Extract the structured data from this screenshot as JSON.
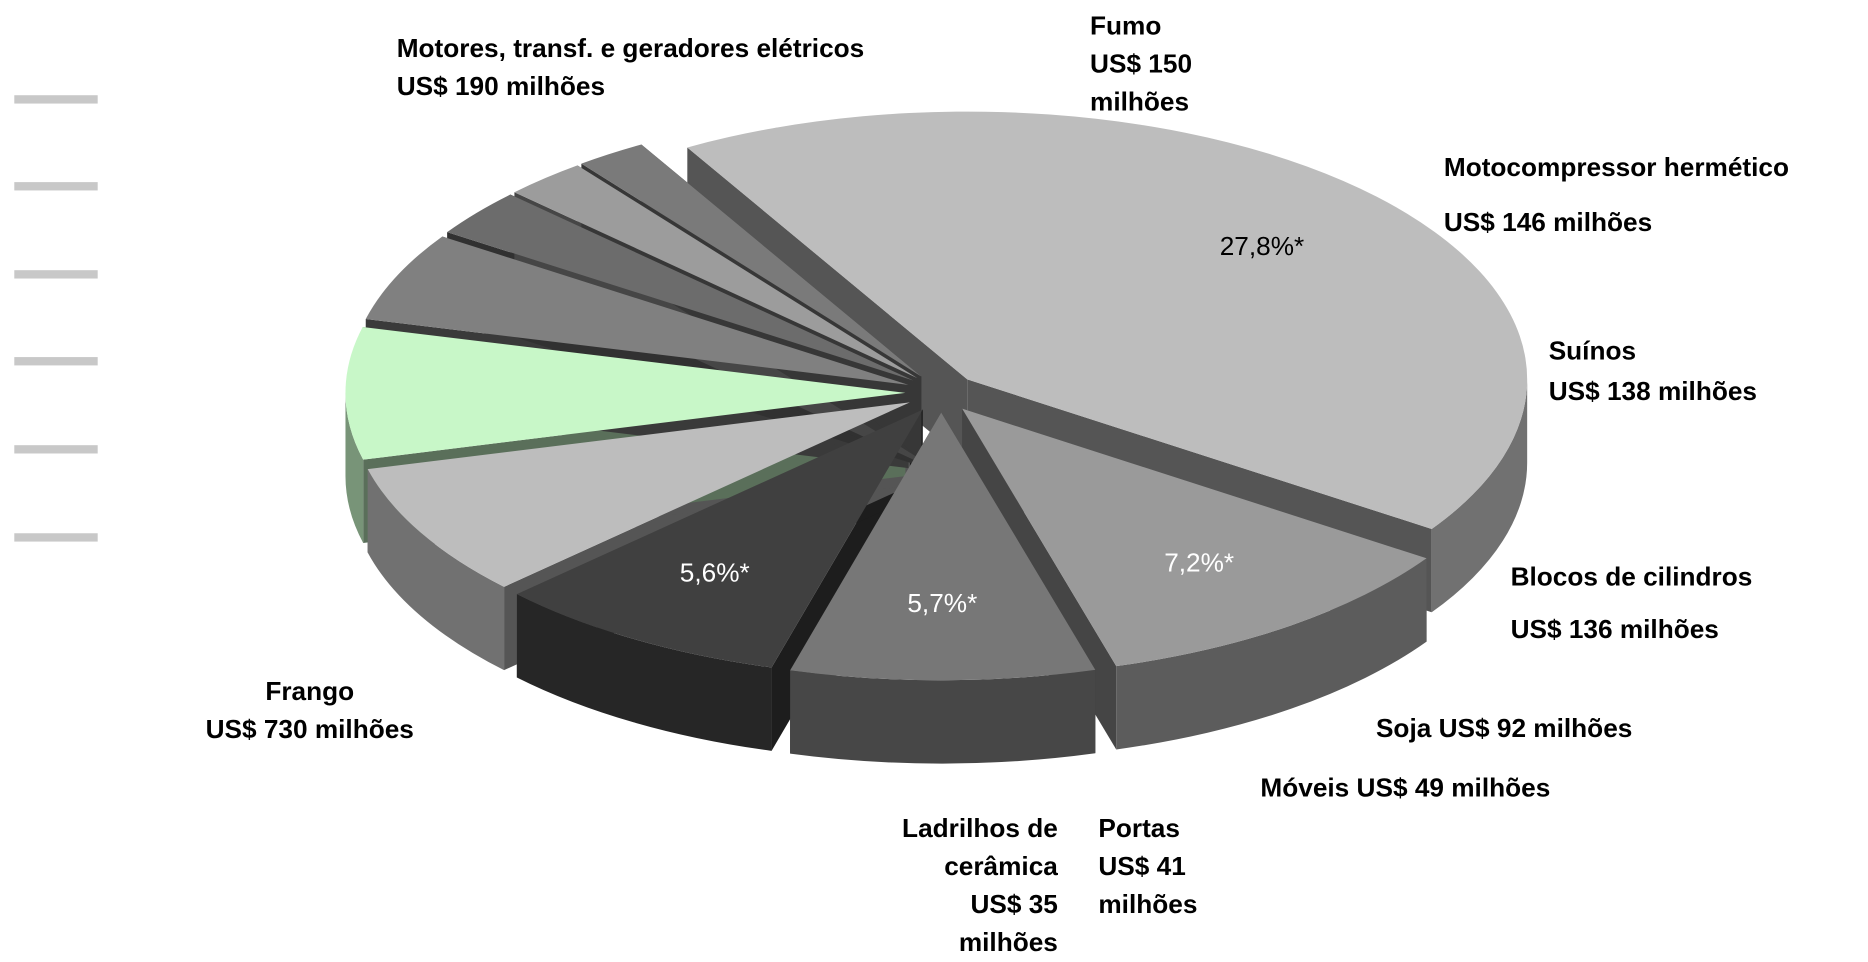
{
  "chart_data": {
    "type": "pie",
    "categories": [
      "Frango",
      "Motores, transf. e geradores elétricos",
      "Fumo",
      "Motocompressor hermético",
      "Suínos",
      "Blocos de cilindros",
      "Soja",
      "Móveis",
      "Portas",
      "Ladrilhos de cerâmica"
    ],
    "values": [
      730,
      190,
      150,
      146,
      138,
      136,
      92,
      49,
      41,
      35
    ],
    "value_labels": [
      "US$ 730 milhões",
      "US$ 190 milhões",
      "US$ 150 milhões",
      "US$ 146 milhões",
      "US$ 138 milhões",
      "US$ 136 milhões",
      "US$ 92 milhões",
      "US$ 49 milhões",
      "US$ 41 milhões",
      "US$ 35 milhões"
    ],
    "percent_labels": [
      "27,8%*",
      "7,2%*",
      "5,7%*",
      "5,6%*",
      null,
      null,
      null,
      null,
      null,
      null
    ],
    "colors": [
      "#bdbdbd",
      "#9a9a9a",
      "#777777",
      "#404040",
      "#bdbdbd",
      "#c8f7c8",
      "#808080",
      "#6c6c6c",
      "#9c9c9c",
      "#7a7a7a"
    ]
  }
}
